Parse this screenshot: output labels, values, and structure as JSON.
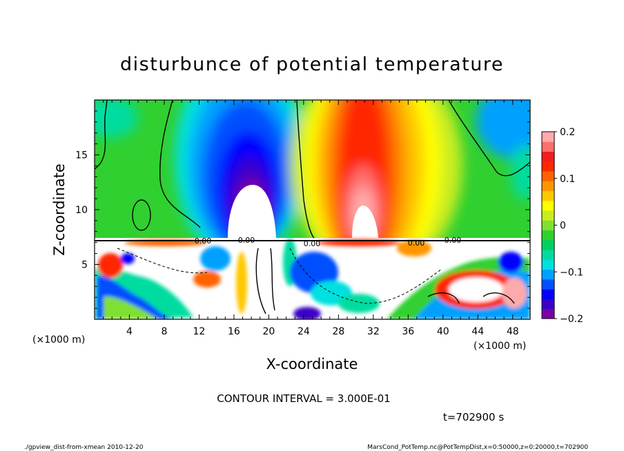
{
  "chart_data": {
    "type": "heatmap",
    "title": "disturbunce of potential temperature",
    "xlabel": "X-coordinate",
    "ylabel": "Z-coordinate",
    "x_unit": "(×1000 m)",
    "z_unit": "(×1000 m)",
    "xlim": [
      0,
      50
    ],
    "ylim": [
      0,
      20
    ],
    "x_ticks": [
      "4",
      "8",
      "12",
      "16",
      "20",
      "24",
      "28",
      "32",
      "36",
      "40",
      "44",
      "48"
    ],
    "x_tick_values": [
      4,
      8,
      12,
      16,
      20,
      24,
      28,
      32,
      36,
      40,
      44,
      48
    ],
    "y_ticks": [
      "5",
      "10",
      "15"
    ],
    "y_tick_values": [
      5,
      10,
      15
    ],
    "colorbar": {
      "min": -0.2,
      "max": 0.2,
      "ticks": [
        "0.2",
        "0.1",
        "0",
        "−0.1",
        "−0.2"
      ],
      "tick_values": [
        0.2,
        0.1,
        0,
        -0.1,
        -0.2
      ],
      "colors": [
        "#7a00a8",
        "#3b00c8",
        "#0000ff",
        "#0050ff",
        "#00a0ff",
        "#00e0e0",
        "#00dca0",
        "#00d060",
        "#30d030",
        "#80e030",
        "#c8ec20",
        "#ffff00",
        "#ffc800",
        "#ff9600",
        "#ff6400",
        "#ff2800",
        "#f01e1e",
        "#ff6e6e",
        "#ffaaaa"
      ]
    },
    "features": [
      {
        "label": "cold anomaly",
        "x_center": 18.5,
        "z_range": [
          7.5,
          19
        ],
        "value": -0.2
      },
      {
        "label": "warm anomaly",
        "x_center": 30.5,
        "z_range": [
          7.5,
          20
        ],
        "value": 0.2
      }
    ],
    "contour_interval": "CONTOUR INTERVAL = 3.000E-01",
    "time_label": "t=702900 s"
  },
  "footer": {
    "left": "./gpview_dist-from-xmean   2010-12-20",
    "right": "MarsCond_PotTemp.nc@PotTempDist,x=0:50000,z=0:20000,t=702900"
  },
  "plot_labels": [
    "0.00",
    "0.00",
    "0.00",
    "0.00",
    "0.00"
  ]
}
